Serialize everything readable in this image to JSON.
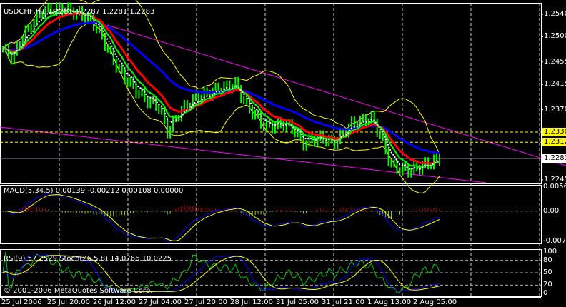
{
  "chart_data": {
    "type": "candlestick",
    "symbol_header": "USDCHF,H1  1.2281 1.2287 1.2281 1.2283",
    "symbol": "USDCHF",
    "timeframe": "H1",
    "ohlc": {
      "open": 1.2281,
      "high": 1.2287,
      "low": 1.2281,
      "close": 1.2283
    },
    "price_ticks": [
      "1.2540",
      "1.2500",
      "1.2455",
      "1.2415",
      "1.2370",
      "1.2245"
    ],
    "price_range": [
      1.224,
      1.256
    ],
    "price_markers": [
      {
        "value": "1.2330",
        "color": "#ffff00"
      },
      {
        "value": "1.2312",
        "color": "#ffff00"
      },
      {
        "value": "1.2283",
        "color": "#ffffff"
      }
    ],
    "time_ticks": [
      "25 Jul 2006",
      "25 Jul 20:00",
      "26 Jul 12:00",
      "27 Jul 04:00",
      "27 Jul 20:00",
      "28 Jul 12:00",
      "31 Jul 05:00",
      "31 Jul 21:00",
      "1 Aug 13:00",
      "2 Aug 05:00"
    ],
    "close_approx": [
      1.2478,
      1.2462,
      1.25,
      1.2522,
      1.2545,
      1.2548,
      1.255,
      1.2546,
      1.254,
      1.253,
      1.2508,
      1.247,
      1.244,
      1.2418,
      1.24,
      1.2385,
      1.2378,
      1.233,
      1.236,
      1.238,
      1.239,
      1.2398,
      1.2405,
      1.241,
      1.2415,
      1.238,
      1.236,
      1.234,
      1.2342,
      1.2345,
      1.2335,
      1.231,
      1.2318,
      1.232,
      1.231,
      1.2328,
      1.2345,
      1.235,
      1.2355,
      1.232,
      1.227,
      1.2264,
      1.2262,
      1.2268,
      1.2275,
      1.2283
    ],
    "series_colors": {
      "price": "#00ff00",
      "ma_fast": "#ffffff",
      "ma_mid": "#ff0000",
      "ma_green": "#00ff00",
      "ma_slow": "#0000ff",
      "bollinger": "#ffff00",
      "trendline": "#ff00ff",
      "channel": "#00cccc"
    },
    "macd": {
      "label": "MACD(5,34,5) 0.00139 -0.00212 0.00108 0.00000",
      "ticks": [
        "0.00568",
        "0.00",
        "-0.00711"
      ],
      "range": [
        -0.00711,
        0.00568
      ]
    },
    "rsi": {
      "label": "RSI(9) 57.2529  Stoch(26,5,8) 14.0766 10.0225",
      "ticks": [
        "100",
        "80",
        "50",
        "20",
        "0"
      ],
      "range": [
        0,
        100
      ]
    },
    "copyright": "© 2001-2006 MetaQuotes Software Corp."
  }
}
